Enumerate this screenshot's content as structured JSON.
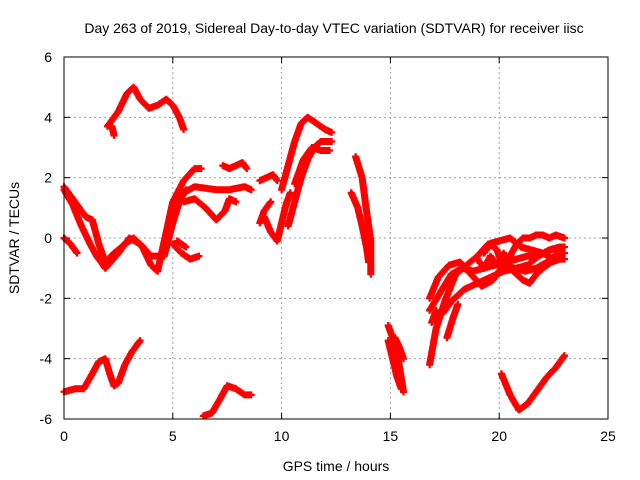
{
  "chart_data": {
    "type": "scatter",
    "title": "Day 263 of 2019, Sidereal Day-to-day VTEC variation (SDTVAR) for receiver iisc",
    "xlabel": "GPS time / hours",
    "ylabel": "SDTVAR / TECUs",
    "xlim": [
      0,
      25
    ],
    "ylim": [
      -6,
      6
    ],
    "xticks": [
      "0",
      "5",
      "10",
      "15",
      "20",
      "25"
    ],
    "yticks": [
      "-6",
      "-4",
      "-2",
      "0",
      "2",
      "4",
      "6"
    ],
    "grid": true,
    "marker": "+",
    "color": "#ff0000",
    "series": [
      {
        "name": "s1",
        "points": [
          [
            0,
            1.7
          ],
          [
            0.5,
            1.2
          ],
          [
            1.0,
            0.7
          ],
          [
            1.3,
            0.6
          ],
          [
            1.6,
            -0.2
          ],
          [
            1.9,
            -0.8
          ],
          [
            2.3,
            -0.5
          ],
          [
            2.8,
            -0.2
          ],
          [
            3.2,
            0.0
          ],
          [
            3.6,
            -0.3
          ],
          [
            4.0,
            -0.9
          ],
          [
            4.3,
            -1.1
          ],
          [
            4.7,
            0.2
          ],
          [
            5.0,
            1.2
          ],
          [
            5.5,
            1.9
          ],
          [
            6.0,
            2.3
          ],
          [
            6.3,
            2.3
          ]
        ]
      },
      {
        "name": "s2",
        "points": [
          [
            0.0,
            1.6
          ],
          [
            0.4,
            1.1
          ],
          [
            0.8,
            0.4
          ],
          [
            1.2,
            -0.2
          ],
          [
            1.5,
            -0.6
          ],
          [
            1.9,
            -1.0
          ],
          [
            2.5,
            -0.5
          ],
          [
            3.0,
            0.0
          ],
          [
            3.5,
            -0.2
          ],
          [
            4.0,
            -0.6
          ],
          [
            4.6,
            -0.6
          ],
          [
            5.0,
            0.5
          ],
          [
            5.3,
            1.2
          ],
          [
            5.6,
            1.6
          ]
        ]
      },
      {
        "name": "s3",
        "points": [
          [
            5.0,
            0.8
          ],
          [
            5.5,
            1.5
          ],
          [
            6.0,
            1.7
          ],
          [
            7.0,
            1.6
          ],
          [
            7.6,
            1.6
          ],
          [
            8.3,
            1.7
          ],
          [
            8.6,
            1.6
          ]
        ]
      },
      {
        "name": "s4",
        "points": [
          [
            5.5,
            1.2
          ],
          [
            6.0,
            1.3
          ],
          [
            6.5,
            1.0
          ],
          [
            7.0,
            0.6
          ],
          [
            7.4,
            0.9
          ],
          [
            7.6,
            1.3
          ],
          [
            7.9,
            1.2
          ]
        ]
      },
      {
        "name": "s5",
        "points": [
          [
            7.3,
            2.4
          ],
          [
            7.6,
            2.3
          ],
          [
            7.9,
            2.4
          ],
          [
            8.2,
            2.5
          ],
          [
            8.4,
            2.3
          ]
        ]
      },
      {
        "name": "s6",
        "points": [
          [
            0.0,
            0.0
          ],
          [
            0.3,
            -0.2
          ],
          [
            0.6,
            -0.5
          ]
        ]
      },
      {
        "name": "s7",
        "points": [
          [
            2.0,
            3.7
          ],
          [
            2.5,
            4.2
          ],
          [
            2.9,
            4.8
          ],
          [
            3.2,
            5.0
          ],
          [
            3.5,
            4.6
          ],
          [
            3.9,
            4.3
          ],
          [
            4.3,
            4.4
          ],
          [
            4.7,
            4.6
          ],
          [
            5.0,
            4.4
          ],
          [
            5.3,
            4.0
          ],
          [
            5.5,
            3.6
          ]
        ]
      },
      {
        "name": "s8",
        "points": [
          [
            2.2,
            3.7
          ],
          [
            2.3,
            3.4
          ]
        ]
      },
      {
        "name": "s9",
        "points": [
          [
            5.0,
            -0.2
          ],
          [
            5.4,
            -0.5
          ],
          [
            5.8,
            -0.7
          ],
          [
            6.2,
            -0.6
          ]
        ]
      },
      {
        "name": "s10",
        "points": [
          [
            5.2,
            -0.1
          ],
          [
            5.6,
            -0.3
          ]
        ]
      },
      {
        "name": "s11",
        "points": [
          [
            0.0,
            -5.1
          ],
          [
            0.5,
            -5.0
          ],
          [
            0.9,
            -5.0
          ],
          [
            1.3,
            -4.5
          ],
          [
            1.6,
            -4.1
          ],
          [
            1.9,
            -4.0
          ],
          [
            2.1,
            -4.5
          ],
          [
            2.3,
            -4.9
          ],
          [
            2.5,
            -4.8
          ],
          [
            2.8,
            -4.2
          ],
          [
            3.1,
            -3.8
          ],
          [
            3.5,
            -3.4
          ]
        ]
      },
      {
        "name": "s12",
        "points": [
          [
            6.4,
            -5.9
          ],
          [
            6.8,
            -5.8
          ],
          [
            7.2,
            -5.3
          ],
          [
            7.5,
            -4.9
          ],
          [
            7.9,
            -5.0
          ],
          [
            8.3,
            -5.2
          ],
          [
            8.6,
            -5.2
          ]
        ]
      },
      {
        "name": "s13",
        "points": [
          [
            9.0,
            1.9
          ],
          [
            9.3,
            2.0
          ],
          [
            9.6,
            2.1
          ],
          [
            9.8,
            1.9
          ]
        ]
      },
      {
        "name": "s14",
        "points": [
          [
            9.2,
            0.7
          ],
          [
            9.5,
            0.2
          ],
          [
            9.8,
            -0.1
          ],
          [
            10.0,
            0.5
          ],
          [
            10.2,
            1.1
          ],
          [
            10.4,
            1.5
          ]
        ]
      },
      {
        "name": "s15",
        "points": [
          [
            9.0,
            0.5
          ],
          [
            9.2,
            0.9
          ],
          [
            9.5,
            1.2
          ]
        ]
      },
      {
        "name": "s16",
        "points": [
          [
            10.0,
            1.6
          ],
          [
            10.3,
            2.4
          ],
          [
            10.6,
            3.2
          ],
          [
            10.9,
            3.8
          ],
          [
            11.2,
            4.0
          ],
          [
            11.6,
            3.8
          ],
          [
            12.0,
            3.6
          ],
          [
            12.3,
            3.5
          ]
        ]
      },
      {
        "name": "s17",
        "points": [
          [
            10.3,
            0.4
          ],
          [
            10.6,
            1.2
          ],
          [
            10.9,
            2.0
          ],
          [
            11.2,
            2.6
          ],
          [
            11.5,
            3.0
          ],
          [
            11.8,
            3.2
          ],
          [
            12.3,
            3.2
          ]
        ]
      },
      {
        "name": "s18",
        "points": [
          [
            10.6,
            1.8
          ],
          [
            11.0,
            2.6
          ],
          [
            11.4,
            3.0
          ],
          [
            11.8,
            2.9
          ],
          [
            12.2,
            2.9
          ]
        ]
      },
      {
        "name": "s19",
        "points": [
          [
            13.4,
            2.7
          ],
          [
            13.7,
            2.0
          ],
          [
            13.9,
            0.9
          ],
          [
            14.1,
            -0.1
          ],
          [
            14.1,
            -1.2
          ]
        ]
      },
      {
        "name": "s20",
        "points": [
          [
            13.2,
            1.5
          ],
          [
            13.5,
            1.0
          ],
          [
            13.7,
            0.4
          ],
          [
            13.9,
            -0.3
          ],
          [
            14.0,
            -0.8
          ]
        ]
      },
      {
        "name": "s21",
        "points": [
          [
            14.9,
            -2.9
          ],
          [
            15.2,
            -3.5
          ],
          [
            15.4,
            -4.2
          ],
          [
            15.6,
            -5.1
          ]
        ]
      },
      {
        "name": "s22",
        "points": [
          [
            14.9,
            -3.4
          ],
          [
            15.1,
            -4.0
          ],
          [
            15.3,
            -4.6
          ],
          [
            15.5,
            -5.0
          ]
        ]
      },
      {
        "name": "s23",
        "points": [
          [
            15.2,
            -3.3
          ],
          [
            15.4,
            -3.6
          ],
          [
            15.6,
            -4.0
          ]
        ]
      },
      {
        "name": "s24",
        "points": [
          [
            16.8,
            -4.2
          ],
          [
            17.1,
            -3.0
          ],
          [
            17.5,
            -2.1
          ],
          [
            18.0,
            -1.2
          ],
          [
            18.5,
            -0.9
          ],
          [
            19.0,
            -0.6
          ],
          [
            19.5,
            -0.2
          ],
          [
            20.0,
            -0.1
          ],
          [
            20.5,
            0.0
          ],
          [
            21.0,
            -0.3
          ],
          [
            21.5,
            -0.4
          ],
          [
            22.0,
            -0.5
          ],
          [
            22.5,
            -0.7
          ],
          [
            23.0,
            -0.7
          ]
        ]
      },
      {
        "name": "s25",
        "points": [
          [
            16.8,
            -2.4
          ],
          [
            17.3,
            -1.8
          ],
          [
            17.8,
            -1.2
          ],
          [
            18.3,
            -1.0
          ],
          [
            18.8,
            -1.1
          ],
          [
            19.3,
            -1.0
          ],
          [
            19.8,
            -0.9
          ],
          [
            20.3,
            -0.8
          ],
          [
            20.8,
            -0.7
          ],
          [
            21.3,
            -0.6
          ],
          [
            21.8,
            -0.6
          ],
          [
            22.3,
            -0.4
          ],
          [
            22.8,
            -0.3
          ],
          [
            23.0,
            -0.3
          ]
        ]
      },
      {
        "name": "s26",
        "points": [
          [
            16.8,
            -2.0
          ],
          [
            17.2,
            -1.3
          ],
          [
            17.7,
            -0.9
          ],
          [
            18.2,
            -0.8
          ],
          [
            18.7,
            -1.2
          ],
          [
            19.2,
            -1.6
          ],
          [
            19.7,
            -1.4
          ],
          [
            20.2,
            -0.9
          ],
          [
            20.7,
            -1.0
          ],
          [
            21.2,
            -1.1
          ],
          [
            21.7,
            -1.0
          ],
          [
            22.2,
            -0.8
          ],
          [
            22.7,
            -0.5
          ],
          [
            23.0,
            -0.5
          ]
        ]
      },
      {
        "name": "s27",
        "points": [
          [
            17.4,
            -2.5
          ],
          [
            17.8,
            -2.1
          ],
          [
            18.4,
            -1.7
          ],
          [
            19.0,
            -1.5
          ],
          [
            19.6,
            -1.3
          ],
          [
            20.2,
            -1.1
          ],
          [
            20.8,
            -1.0
          ],
          [
            21.3,
            -0.9
          ],
          [
            21.8,
            -0.6
          ],
          [
            22.3,
            -0.4
          ],
          [
            22.8,
            -0.3
          ]
        ]
      },
      {
        "name": "s28",
        "points": [
          [
            19.3,
            -0.5
          ],
          [
            19.6,
            -0.2
          ],
          [
            19.9,
            -0.4
          ],
          [
            20.2,
            -1.0
          ],
          [
            20.5,
            -0.6
          ],
          [
            20.8,
            -0.2
          ],
          [
            21.1,
            0.0
          ],
          [
            21.4,
            0.0
          ],
          [
            21.7,
            0.1
          ],
          [
            22.0,
            0.1
          ],
          [
            22.3,
            0.0
          ],
          [
            22.6,
            0.1
          ],
          [
            23.0,
            0.0
          ]
        ]
      },
      {
        "name": "s29",
        "points": [
          [
            19.0,
            -0.7
          ],
          [
            19.3,
            -1.0
          ],
          [
            19.6,
            -0.6
          ],
          [
            19.9,
            -0.9
          ],
          [
            20.2,
            -0.5
          ],
          [
            20.5,
            -1.0
          ],
          [
            20.8,
            -1.2
          ],
          [
            21.1,
            -1.4
          ],
          [
            21.4,
            -1.5
          ],
          [
            21.7,
            -1.2
          ],
          [
            22.0,
            -1.0
          ],
          [
            22.4,
            -0.8
          ],
          [
            22.8,
            -0.7
          ]
        ]
      },
      {
        "name": "s30",
        "points": [
          [
            20.1,
            -4.5
          ],
          [
            20.5,
            -5.2
          ],
          [
            20.9,
            -5.7
          ],
          [
            21.3,
            -5.5
          ],
          [
            21.8,
            -5.0
          ],
          [
            22.2,
            -4.6
          ],
          [
            22.6,
            -4.3
          ],
          [
            23.0,
            -3.9
          ]
        ]
      },
      {
        "name": "s31",
        "points": [
          [
            16.9,
            -2.8
          ],
          [
            17.1,
            -2.4
          ]
        ]
      },
      {
        "name": "s32",
        "points": [
          [
            17.6,
            -3.3
          ],
          [
            17.9,
            -2.6
          ],
          [
            18.1,
            -2.2
          ]
        ]
      }
    ]
  }
}
